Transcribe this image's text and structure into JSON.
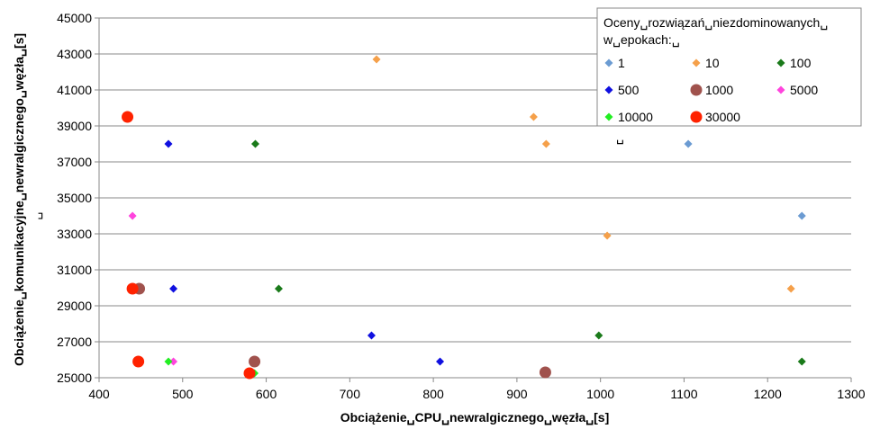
{
  "chart_data": {
    "type": "scatter",
    "title": "",
    "xlabel": "Obciążenie␣CPU␣newralgicznego␣węzła␣[s]",
    "ylabel": "Obciążenie␣komunikacyjne␣newralgicznego␣węzła␣[s]",
    "ylabel_extra": "␣",
    "xlim": [
      400,
      1300
    ],
    "ylim": [
      25000,
      45000
    ],
    "x_ticks": [
      "400",
      "500",
      "600",
      "700",
      "800",
      "900",
      "1000",
      "1100",
      "1200",
      "1300"
    ],
    "y_ticks": [
      "25000",
      "27000",
      "29000",
      "31000",
      "33000",
      "35000",
      "37000",
      "39000",
      "41000",
      "43000",
      "45000"
    ],
    "grid": "horizontal",
    "legend": {
      "title_line1": "Oceny␣rozwiązań␣niezdominowanych␣",
      "title_line2": "w␣epokach:␣",
      "trailing": "␣",
      "placement": "top-right"
    },
    "series": [
      {
        "name": "1",
        "color": "#6b9bd2",
        "marker": "diamond",
        "points": [
          [
            1105,
            38000
          ],
          [
            1241,
            34000
          ]
        ]
      },
      {
        "name": "10",
        "color": "#f5a04a",
        "marker": "diamond",
        "points": [
          [
            732,
            42700
          ],
          [
            920,
            39500
          ],
          [
            935,
            38000
          ],
          [
            1008,
            32900
          ],
          [
            1228,
            29950
          ]
        ]
      },
      {
        "name": "100",
        "color": "#1a7a1a",
        "marker": "diamond",
        "points": [
          [
            587,
            38000
          ],
          [
            615,
            29950
          ],
          [
            998,
            27350
          ],
          [
            1241,
            25900
          ]
        ]
      },
      {
        "name": "500",
        "color": "#1010e0",
        "marker": "diamond",
        "points": [
          [
            483,
            38000
          ],
          [
            489,
            29950
          ],
          [
            726,
            27350
          ],
          [
            808,
            25900
          ]
        ]
      },
      {
        "name": "1000",
        "color": "#a0524d",
        "marker": "circle",
        "points": [
          [
            448,
            29950
          ],
          [
            586,
            25900
          ],
          [
            934,
            25300
          ]
        ]
      },
      {
        "name": "5000",
        "color": "#ff44dd",
        "marker": "diamond",
        "points": [
          [
            440,
            34000
          ],
          [
            489,
            25900
          ]
        ]
      },
      {
        "name": "10000",
        "color": "#22ee22",
        "marker": "diamond",
        "points": [
          [
            440,
            29950
          ],
          [
            483,
            25900
          ],
          [
            586,
            25250
          ]
        ]
      },
      {
        "name": "30000",
        "color": "#ff2200",
        "marker": "circle",
        "points": [
          [
            434,
            39500
          ],
          [
            440,
            29950
          ],
          [
            447,
            25900
          ],
          [
            580,
            25250
          ]
        ]
      }
    ]
  }
}
